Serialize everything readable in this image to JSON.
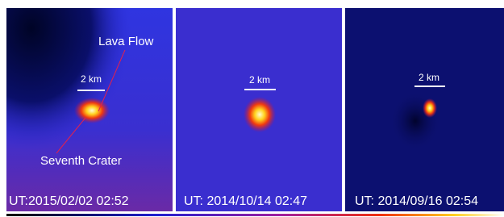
{
  "panels": [
    {
      "time": "UT:2015/02/02 02:52",
      "scale": "2 km",
      "labels": [
        "Lava Flow",
        "Seventh Crater"
      ]
    },
    {
      "time": "UT: 2014/10/14 02:47",
      "scale": "2 km"
    },
    {
      "time": "UT: 2014/09/16 02:54",
      "scale": "2 km"
    }
  ]
}
